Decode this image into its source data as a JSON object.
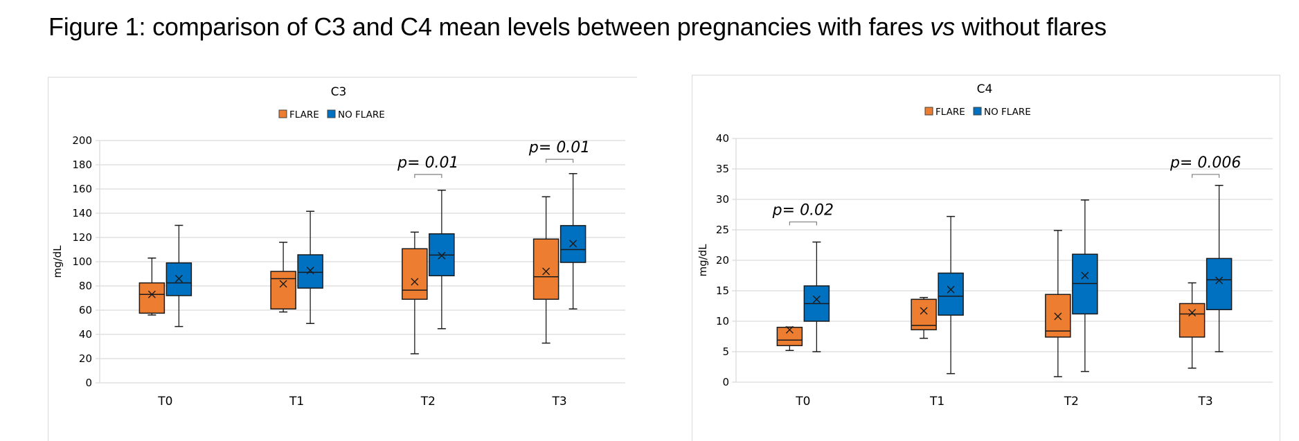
{
  "figure": {
    "title_prefix": "Figure 1: comparison of C3 and C4 mean levels between pregnancies with fares ",
    "title_italic": "vs",
    "title_suffix": " without flares"
  },
  "colors": {
    "flare": "#ED7D31",
    "no_flare": "#0070C0",
    "gridline": "#D9D9D9",
    "box_edge": "#1a1a1a"
  },
  "chart_data": [
    {
      "type": "boxplot",
      "title": "C3",
      "xlabel": "",
      "ylabel": "mg/dL",
      "ylim": [
        0,
        200
      ],
      "yticks": [
        0,
        20,
        40,
        60,
        80,
        100,
        120,
        140,
        160,
        180,
        200
      ],
      "grid": true,
      "legend": {
        "placement": "top-center",
        "entries": [
          "FLARE",
          "NO FLARE"
        ]
      },
      "categories": [
        "T0",
        "T1",
        "T2",
        "T3"
      ],
      "series": [
        {
          "name": "FLARE",
          "color": "#ED7D31",
          "values": [
            {
              "min": 56,
              "q1": 57.5,
              "median": 73,
              "q3": 82.5,
              "max": 103,
              "mean": 73
            },
            {
              "min": 58.5,
              "q1": 61,
              "median": 86,
              "q3": 92,
              "max": 116,
              "mean": 81.7
            },
            {
              "min": 24,
              "q1": 69,
              "median": 76.5,
              "q3": 110.7,
              "max": 124.4,
              "mean": 83.4
            },
            {
              "min": 32.8,
              "q1": 69,
              "median": 87.6,
              "q3": 118.7,
              "max": 153.6,
              "mean": 92
            }
          ]
        },
        {
          "name": "NO FLARE",
          "color": "#0070C0",
          "values": [
            {
              "min": 46.5,
              "q1": 72,
              "median": 82.5,
              "q3": 99,
              "max": 130,
              "mean": 86
            },
            {
              "min": 49,
              "q1": 78.2,
              "median": 91.2,
              "q3": 105.7,
              "max": 141.6,
              "mean": 92.7
            },
            {
              "min": 44.7,
              "q1": 88.4,
              "median": 105.5,
              "q3": 123,
              "max": 159,
              "mean": 105
            },
            {
              "min": 61,
              "q1": 99.4,
              "median": 110,
              "q3": 129.8,
              "max": 172.7,
              "mean": 114.9
            }
          ]
        }
      ],
      "annotations": [
        {
          "category": "T2",
          "text": "p= 0.01",
          "bracket_y": 172
        },
        {
          "category": "T3",
          "text": "p= 0.01",
          "bracket_y": 184.5
        }
      ]
    },
    {
      "type": "boxplot",
      "title": "C4",
      "xlabel": "",
      "ylabel": "mg/dL",
      "ylim": [
        0,
        40
      ],
      "yticks": [
        0,
        5,
        10,
        15,
        20,
        25,
        30,
        35,
        40
      ],
      "grid": true,
      "legend": {
        "placement": "top-center",
        "entries": [
          "FLARE",
          "NO FLARE"
        ]
      },
      "categories": [
        "T0",
        "T1",
        "T2",
        "T3"
      ],
      "series": [
        {
          "name": "FLARE",
          "color": "#ED7D31",
          "values": [
            {
              "min": 5.2,
              "q1": 6.0,
              "median": 6.9,
              "q3": 9.0,
              "max": 9.05,
              "mean": 8.6
            },
            {
              "min": 7.2,
              "q1": 8.6,
              "median": 9.3,
              "q3": 13.6,
              "max": 13.9,
              "mean": 11.7
            },
            {
              "min": 0.9,
              "q1": 7.4,
              "median": 8.4,
              "q3": 14.4,
              "max": 24.9,
              "mean": 10.8
            },
            {
              "min": 2.3,
              "q1": 7.4,
              "median": 11.2,
              "q3": 12.9,
              "max": 16.3,
              "mean": 11.4
            }
          ]
        },
        {
          "name": "NO FLARE",
          "color": "#0070C0",
          "values": [
            {
              "min": 5.0,
              "q1": 10.0,
              "median": 12.9,
              "q3": 15.8,
              "max": 23.0,
              "mean": 13.6
            },
            {
              "min": 1.4,
              "q1": 11.0,
              "median": 14.1,
              "q3": 17.9,
              "max": 27.2,
              "mean": 15.2
            },
            {
              "min": 1.75,
              "q1": 11.2,
              "median": 16.2,
              "q3": 21.0,
              "max": 29.9,
              "mean": 17.5
            },
            {
              "min": 5.0,
              "q1": 11.9,
              "median": 16.8,
              "q3": 20.3,
              "max": 32.3,
              "mean": 16.7
            }
          ]
        }
      ],
      "annotations": [
        {
          "category": "T0",
          "text": "p= 0.02",
          "bracket_y": 26.3
        },
        {
          "category": "T3",
          "text": "p= 0.006",
          "bracket_y": 34.1
        }
      ]
    }
  ]
}
